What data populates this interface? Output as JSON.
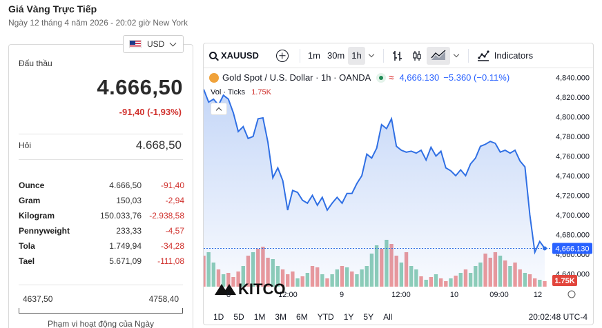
{
  "header": {
    "title": "Giá Vàng Trực Tiếp",
    "subtitle": "Ngày 12 tháng 4 năm 2026 - 20:02 giờ New York"
  },
  "currency": {
    "selected": "USD",
    "icon": "us-flag-icon"
  },
  "bid": {
    "label": "Đấu thầu",
    "value": "4.666,50",
    "change": "-91,40 (-1,93%)"
  },
  "ask": {
    "label": "Hỏi",
    "value": "4.668,50"
  },
  "units": [
    {
      "name": "Ounce",
      "price": "4.666,50",
      "change": "-91,40"
    },
    {
      "name": "Gram",
      "price": "150,03",
      "change": "-2,94"
    },
    {
      "name": "Kilogram",
      "price": "150.033,76",
      "change": "-2.938,58"
    },
    {
      "name": "Pennyweight",
      "price": "233,33",
      "change": "-4,57"
    },
    {
      "name": "Tola",
      "price": "1.749,94",
      "change": "-34,28"
    },
    {
      "name": "Tael",
      "price": "5.671,09",
      "change": "-111,08"
    }
  ],
  "day_range": {
    "low": "4637,50",
    "high": "4758,40",
    "title": "Phạm vi hoạt động của Ngày"
  },
  "toolbar": {
    "symbol": "XAUUSD",
    "intervals": [
      "1m",
      "30m",
      "1h"
    ],
    "active_interval": "1h",
    "indicators_label": "Indicators"
  },
  "legend": {
    "title": "Gold Spot / U.S. Dollar · 1h · OANDA",
    "price": "4,666.130",
    "change": "−5.360 (−0.11%)",
    "vol_label": "Vol · Ticks",
    "vol_value": "1.75K"
  },
  "watermark": "KITCO",
  "bottom_bar": {
    "ranges": [
      "1D",
      "5D",
      "1M",
      "3M",
      "6M",
      "YTD",
      "1Y",
      "5Y",
      "All"
    ],
    "clock": "20:02:48 UTC-4"
  },
  "colors": {
    "line": "#2f6fe4",
    "vol_up": "#8fcfb7",
    "vol_down": "#ef9a9a",
    "down_text": "#d0312d",
    "last_price_tag": "#2962ff"
  },
  "chart_data": {
    "type": "line",
    "y_ticks": [
      "4,840.000",
      "4,820.000",
      "4,800.000",
      "4,780.000",
      "4,760.000",
      "4,740.000",
      "4,720.000",
      "4,700.000",
      "4,680.000",
      "4,660.000",
      "4,640.000"
    ],
    "x_ticks": [
      "8",
      "12:00",
      "9",
      "12:00",
      "10",
      "09:00",
      "12"
    ],
    "ylim": [
      4627,
      4846
    ],
    "last_price_label": "4,666.130",
    "vol_label_tag": "1.75K",
    "price": [
      4828,
      4815,
      4818,
      4812,
      4822,
      4818,
      4804,
      4785,
      4790,
      4778,
      4780,
      4798,
      4799,
      4774,
      4738,
      4748,
      4735,
      4705,
      4725,
      4723,
      4715,
      4712,
      4720,
      4710,
      4718,
      4705,
      4712,
      4718,
      4712,
      4722,
      4722,
      4732,
      4740,
      4762,
      4758,
      4768,
      4792,
      4788,
      4798,
      4770,
      4766,
      4764,
      4765,
      4763,
      4766,
      4756,
      4769,
      4760,
      4765,
      4748,
      4745,
      4740,
      4746,
      4740,
      4752,
      4758,
      4770,
      4772,
      4775,
      4773,
      4764,
      4766,
      4763,
      4766,
      4755,
      4749,
      4700,
      4662,
      4673,
      4666
    ],
    "volume": [
      0.45,
      0.5,
      0.35,
      0.25,
      0.18,
      0.2,
      0.14,
      0.22,
      0.3,
      0.45,
      0.5,
      0.55,
      0.58,
      0.42,
      0.4,
      0.3,
      0.25,
      0.18,
      0.22,
      0.12,
      0.15,
      0.2,
      0.3,
      0.28,
      0.18,
      0.12,
      0.18,
      0.25,
      0.3,
      0.28,
      0.22,
      0.18,
      0.25,
      0.3,
      0.48,
      0.6,
      0.55,
      0.68,
      0.62,
      0.45,
      0.35,
      0.5,
      0.3,
      0.25,
      0.15,
      0.1,
      0.14,
      0.18,
      0.12,
      0.08,
      0.12,
      0.16,
      0.2,
      0.25,
      0.2,
      0.3,
      0.35,
      0.48,
      0.42,
      0.5,
      0.45,
      0.38,
      0.3,
      0.35,
      0.25,
      0.2,
      0.18,
      0.12,
      0.1,
      0.08
    ],
    "volume_direction": [
      "d",
      "u",
      "u",
      "d",
      "u",
      "d",
      "d",
      "d",
      "u",
      "d",
      "u",
      "d",
      "d",
      "d",
      "u",
      "u",
      "d",
      "d",
      "d",
      "u",
      "d",
      "u",
      "d",
      "d",
      "u",
      "d",
      "u",
      "u",
      "d",
      "u",
      "d",
      "u",
      "u",
      "u",
      "u",
      "u",
      "d",
      "u",
      "d",
      "d",
      "u",
      "d",
      "u",
      "u",
      "d",
      "u",
      "d",
      "u",
      "d",
      "d",
      "u",
      "d",
      "u",
      "d",
      "u",
      "u",
      "u",
      "d",
      "d",
      "d",
      "u",
      "d",
      "u",
      "d",
      "d",
      "u",
      "d",
      "d",
      "u",
      "d"
    ]
  }
}
